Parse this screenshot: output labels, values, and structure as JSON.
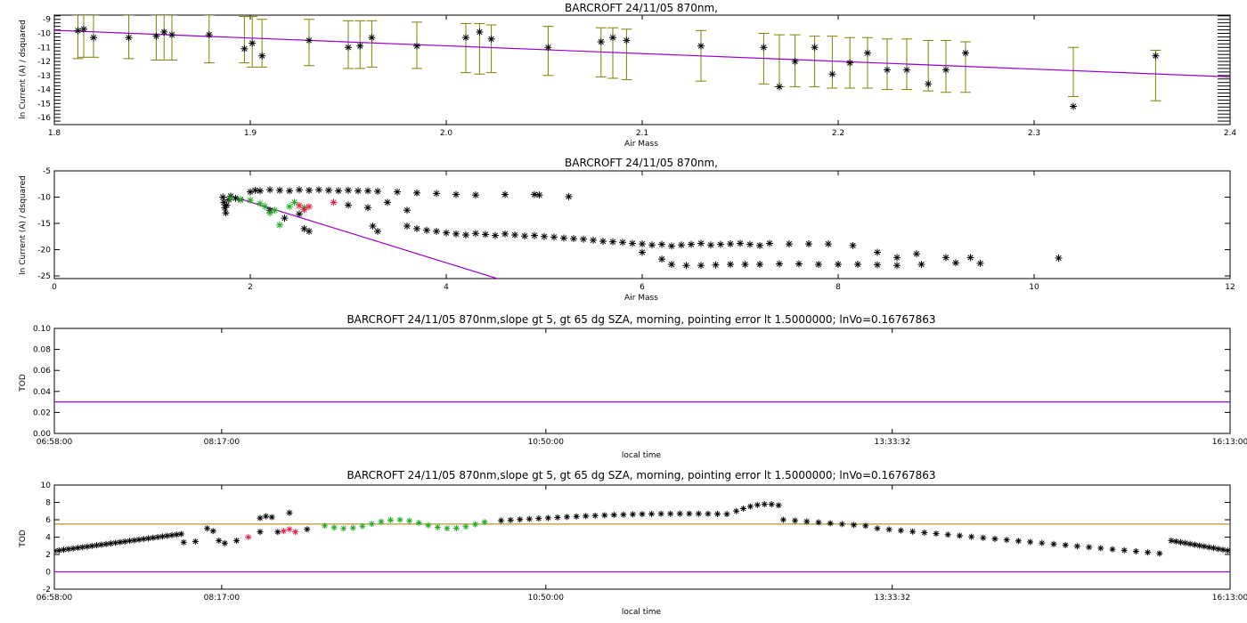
{
  "colors": {
    "fit_line": "#9900cc",
    "error_bars": "#808000",
    "markers": "#000000",
    "green": "#22aa22",
    "red": "#dd2244",
    "gold_line": "#a08000"
  },
  "chart_data": [
    {
      "type": "scatter",
      "title": "BARCROFT 24/11/05 870nm,",
      "xlabel": "Air Mass",
      "ylabel": "ln Current (A) / dsquared",
      "xlim": [
        1.8,
        2.4
      ],
      "ylim": [
        -16.5,
        -8.7
      ],
      "xticks": [
        1.8,
        1.9,
        2.0,
        2.1,
        2.2,
        2.3,
        2.4
      ],
      "xtick_labels": [
        "1.8",
        "1.9",
        "2.0",
        "2.1",
        "2.2",
        "2.3",
        "2.4"
      ],
      "yticks": [
        -16,
        -15,
        -14,
        -13,
        -12,
        -11,
        -10,
        -9
      ],
      "ytick_labels": [
        "-16",
        "-15",
        "-14",
        "-13",
        "-12",
        "-11",
        "-10",
        "-9"
      ],
      "fit_line": {
        "x": [
          1.8,
          2.4
        ],
        "y": [
          -9.78,
          -13.1
        ]
      },
      "points": [
        {
          "x": 1.812,
          "y": -9.8,
          "lo": -11.8,
          "hi": -8.7
        },
        {
          "x": 1.815,
          "y": -9.7,
          "lo": -11.7,
          "hi": -8.7
        },
        {
          "x": 1.82,
          "y": -10.3,
          "lo": -11.7,
          "hi": -8.7
        },
        {
          "x": 1.838,
          "y": -10.3,
          "lo": -11.8,
          "hi": -8.7
        },
        {
          "x": 1.852,
          "y": -10.2,
          "lo": -11.9,
          "hi": -8.7
        },
        {
          "x": 1.856,
          "y": -9.9,
          "lo": -11.9,
          "hi": -8.7
        },
        {
          "x": 1.86,
          "y": -10.1,
          "lo": -11.9,
          "hi": -8.7
        },
        {
          "x": 1.879,
          "y": -10.1,
          "lo": -12.1,
          "hi": -8.7
        },
        {
          "x": 1.897,
          "y": -11.1,
          "lo": -12.1,
          "hi": -8.8
        },
        {
          "x": 1.901,
          "y": -10.7,
          "lo": -12.4,
          "hi": -8.8
        },
        {
          "x": 1.906,
          "y": -11.6,
          "lo": -12.4,
          "hi": -9.0
        },
        {
          "x": 1.93,
          "y": -10.5,
          "lo": -12.3,
          "hi": -9.0
        },
        {
          "x": 1.95,
          "y": -11.0,
          "lo": -12.5,
          "hi": -9.1
        },
        {
          "x": 1.956,
          "y": -10.9,
          "lo": -12.5,
          "hi": -9.1
        },
        {
          "x": 1.962,
          "y": -10.3,
          "lo": -12.4,
          "hi": -9.1
        },
        {
          "x": 1.985,
          "y": -10.9,
          "lo": -12.5,
          "hi": -9.2
        },
        {
          "x": 2.01,
          "y": -10.3,
          "lo": -12.8,
          "hi": -9.3
        },
        {
          "x": 2.017,
          "y": -9.9,
          "lo": -12.9,
          "hi": -9.3
        },
        {
          "x": 2.023,
          "y": -10.4,
          "lo": -12.8,
          "hi": -9.4
        },
        {
          "x": 2.052,
          "y": -11.0,
          "lo": -13.0,
          "hi": -9.5
        },
        {
          "x": 2.079,
          "y": -10.6,
          "lo": -13.1,
          "hi": -9.6
        },
        {
          "x": 2.085,
          "y": -10.3,
          "lo": -13.2,
          "hi": -9.6
        },
        {
          "x": 2.092,
          "y": -10.5,
          "lo": -13.3,
          "hi": -9.7
        },
        {
          "x": 2.13,
          "y": -10.9,
          "lo": -13.4,
          "hi": -9.8
        },
        {
          "x": 2.162,
          "y": -11.0,
          "lo": -13.6,
          "hi": -10.0
        },
        {
          "x": 2.17,
          "y": -13.8,
          "lo": -13.8,
          "hi": -10.1
        },
        {
          "x": 2.178,
          "y": -12.0,
          "lo": -13.8,
          "hi": -10.1
        },
        {
          "x": 2.188,
          "y": -11.0,
          "lo": -13.8,
          "hi": -10.2
        },
        {
          "x": 2.197,
          "y": -12.9,
          "lo": -13.9,
          "hi": -10.2
        },
        {
          "x": 2.206,
          "y": -12.1,
          "lo": -13.9,
          "hi": -10.3
        },
        {
          "x": 2.215,
          "y": -11.4,
          "lo": -13.9,
          "hi": -10.3
        },
        {
          "x": 2.225,
          "y": -12.6,
          "lo": -14.0,
          "hi": -10.4
        },
        {
          "x": 2.235,
          "y": -12.6,
          "lo": -14.0,
          "hi": -10.4
        },
        {
          "x": 2.246,
          "y": -13.6,
          "lo": -14.1,
          "hi": -10.5
        },
        {
          "x": 2.255,
          "y": -12.6,
          "lo": -14.2,
          "hi": -10.5
        },
        {
          "x": 2.265,
          "y": -11.4,
          "lo": -14.2,
          "hi": -10.6
        },
        {
          "x": 2.32,
          "y": -15.2,
          "lo": -14.5,
          "hi": -11.0
        },
        {
          "x": 2.362,
          "y": -11.6,
          "lo": -14.8,
          "hi": -11.2
        }
      ]
    },
    {
      "type": "scatter",
      "title": "BARCROFT 24/11/05 870nm,",
      "xlabel": "Air Mass",
      "ylabel": "ln Current (A) / dsquared",
      "xlim": [
        0,
        12
      ],
      "ylim": [
        -25.5,
        -5
      ],
      "xticks": [
        0,
        2,
        4,
        6,
        8,
        10,
        12
      ],
      "xtick_labels": [
        "0",
        "2",
        "4",
        "6",
        "8",
        "10",
        "12"
      ],
      "yticks": [
        -25,
        -20,
        -15,
        -10,
        -5
      ],
      "ytick_labels": [
        "-25",
        "-20",
        "-15",
        "-10",
        "-5"
      ],
      "fit_line": {
        "x": [
          1.8,
          4.52
        ],
        "y": [
          -9.78,
          -25.5
        ]
      },
      "series": [
        {
          "color": "black",
          "points": [
            [
              1.72,
              -10.0
            ],
            [
              1.73,
              -11.0
            ],
            [
              1.74,
              -12.0
            ],
            [
              1.75,
              -13.0
            ],
            [
              1.76,
              -11.5
            ],
            [
              1.78,
              -10.5
            ],
            [
              1.8,
              -9.8
            ],
            [
              1.85,
              -10.2
            ],
            [
              1.9,
              -10.5
            ],
            [
              2.0,
              -9.0
            ],
            [
              2.05,
              -8.7
            ],
            [
              2.1,
              -8.8
            ],
            [
              2.2,
              -8.6
            ],
            [
              2.3,
              -8.7
            ],
            [
              2.4,
              -8.8
            ],
            [
              2.5,
              -8.6
            ],
            [
              2.6,
              -8.7
            ],
            [
              2.7,
              -8.6
            ],
            [
              2.8,
              -8.7
            ],
            [
              2.9,
              -8.8
            ],
            [
              3.0,
              -8.7
            ],
            [
              3.1,
              -8.8
            ],
            [
              3.2,
              -8.8
            ],
            [
              3.3,
              -8.9
            ],
            [
              3.5,
              -9.0
            ],
            [
              3.7,
              -9.2
            ],
            [
              3.9,
              -9.3
            ],
            [
              4.1,
              -9.5
            ],
            [
              4.3,
              -9.6
            ],
            [
              4.6,
              -9.5
            ],
            [
              4.9,
              -9.5
            ],
            [
              4.95,
              -9.6
            ],
            [
              5.25,
              -9.9
            ],
            [
              2.2,
              -12.5
            ],
            [
              2.35,
              -14.0
            ],
            [
              2.5,
              -13.2
            ],
            [
              2.55,
              -16.0
            ],
            [
              2.6,
              -16.5
            ],
            [
              3.0,
              -11.5
            ],
            [
              3.2,
              -12.0
            ],
            [
              3.25,
              -15.5
            ],
            [
              3.3,
              -16.5
            ],
            [
              3.4,
              -11.0
            ],
            [
              3.6,
              -12.5
            ],
            [
              3.6,
              -15.5
            ],
            [
              3.7,
              -16.0
            ],
            [
              3.8,
              -16.3
            ],
            [
              3.9,
              -16.5
            ],
            [
              4.0,
              -16.8
            ],
            [
              4.1,
              -17.0
            ],
            [
              4.2,
              -17.2
            ],
            [
              4.3,
              -16.9
            ],
            [
              4.4,
              -17.1
            ],
            [
              4.5,
              -17.3
            ],
            [
              4.6,
              -17.0
            ],
            [
              4.7,
              -17.2
            ],
            [
              4.8,
              -17.4
            ],
            [
              4.9,
              -17.3
            ],
            [
              5.0,
              -17.5
            ],
            [
              5.1,
              -17.6
            ],
            [
              5.2,
              -17.8
            ],
            [
              5.3,
              -17.9
            ],
            [
              5.4,
              -18.0
            ],
            [
              5.5,
              -18.2
            ],
            [
              5.6,
              -18.4
            ],
            [
              5.7,
              -18.5
            ],
            [
              5.8,
              -18.6
            ],
            [
              5.9,
              -18.8
            ],
            [
              6.0,
              -18.9
            ],
            [
              6.1,
              -19.1
            ],
            [
              6.2,
              -19.0
            ],
            [
              6.3,
              -19.3
            ],
            [
              6.4,
              -19.1
            ],
            [
              6.5,
              -19.0
            ],
            [
              6.6,
              -18.8
            ],
            [
              6.7,
              -19.1
            ],
            [
              6.8,
              -19.0
            ],
            [
              6.9,
              -18.9
            ],
            [
              7.0,
              -18.8
            ],
            [
              7.1,
              -19.0
            ],
            [
              7.2,
              -19.2
            ],
            [
              7.3,
              -18.8
            ],
            [
              7.5,
              -18.9
            ],
            [
              7.7,
              -18.9
            ],
            [
              7.9,
              -18.9
            ],
            [
              8.15,
              -19.2
            ],
            [
              6.0,
              -20.5
            ],
            [
              6.2,
              -21.8
            ],
            [
              6.3,
              -22.8
            ],
            [
              6.45,
              -23.0
            ],
            [
              6.6,
              -23.0
            ],
            [
              6.75,
              -22.9
            ],
            [
              6.9,
              -22.8
            ],
            [
              7.05,
              -22.8
            ],
            [
              7.2,
              -22.8
            ],
            [
              7.4,
              -22.7
            ],
            [
              7.6,
              -22.7
            ],
            [
              7.8,
              -22.8
            ],
            [
              8.0,
              -22.8
            ],
            [
              8.2,
              -22.8
            ],
            [
              8.4,
              -22.9
            ],
            [
              8.6,
              -23.0
            ],
            [
              8.4,
              -20.5
            ],
            [
              8.6,
              -21.5
            ],
            [
              8.8,
              -20.8
            ],
            [
              8.85,
              -22.8
            ],
            [
              9.1,
              -21.5
            ],
            [
              9.2,
              -22.5
            ],
            [
              9.35,
              -21.5
            ],
            [
              9.45,
              -22.6
            ],
            [
              10.25,
              -21.6
            ]
          ]
        },
        {
          "color": "green",
          "points": [
            [
              1.8,
              -10.2
            ],
            [
              1.9,
              -10.4
            ],
            [
              2.0,
              -10.6
            ],
            [
              2.1,
              -11.2
            ],
            [
              2.15,
              -11.8
            ],
            [
              2.2,
              -13.0
            ],
            [
              2.25,
              -12.5
            ],
            [
              2.3,
              -15.3
            ],
            [
              2.4,
              -11.8
            ],
            [
              2.45,
              -11.0
            ],
            [
              2.55,
              -12.0
            ]
          ]
        },
        {
          "color": "red",
          "points": [
            [
              2.5,
              -11.6
            ],
            [
              2.55,
              -12.4
            ],
            [
              2.6,
              -11.8
            ],
            [
              2.85,
              -11.0
            ]
          ]
        }
      ]
    },
    {
      "type": "line",
      "title": "BARCROFT 24/11/05 870nm,slope gt 5, gt 65 dg SZA, morning, pointing error lt 1.5000000; lnVo=0.16767863",
      "xlabel": "local time",
      "ylabel": "TOD",
      "xlim": [
        "06:58:00",
        "16:13:00"
      ],
      "ylim": [
        0.0,
        0.1
      ],
      "xtick_labels": [
        "06:58:00",
        "08:17:00",
        "10:50:00",
        "13:33:32",
        "16:13:00"
      ],
      "ytick_labels": [
        "0.00",
        "0.02",
        "0.04",
        "0.06",
        "0.08",
        "0.10"
      ],
      "yticks": [
        0.0,
        0.02,
        0.04,
        0.06,
        0.08,
        0.1
      ],
      "hline": 0.03
    },
    {
      "type": "scatter",
      "title": "BARCROFT 24/11/05 870nm,slope gt 5, gt 65 dg SZA, morning, pointing error lt 1.5000000; lnVo=0.16767863",
      "xlabel": "local time",
      "ylabel": "TOD",
      "xlim": [
        "06:58:00",
        "16:13:00"
      ],
      "ylim": [
        -2,
        10
      ],
      "xtick_labels": [
        "06:58:00",
        "08:17:00",
        "10:50:00",
        "13:33:32",
        "16:13:00"
      ],
      "yticks": [
        -2,
        0,
        2,
        4,
        6,
        8,
        10
      ],
      "ytick_labels": [
        "-2",
        "0",
        "2",
        "4",
        "6",
        "8",
        "10"
      ],
      "hlines": [
        {
          "y": 5.5,
          "color": "gold"
        },
        {
          "y": 0.0,
          "color": "purple"
        }
      ]
    }
  ]
}
